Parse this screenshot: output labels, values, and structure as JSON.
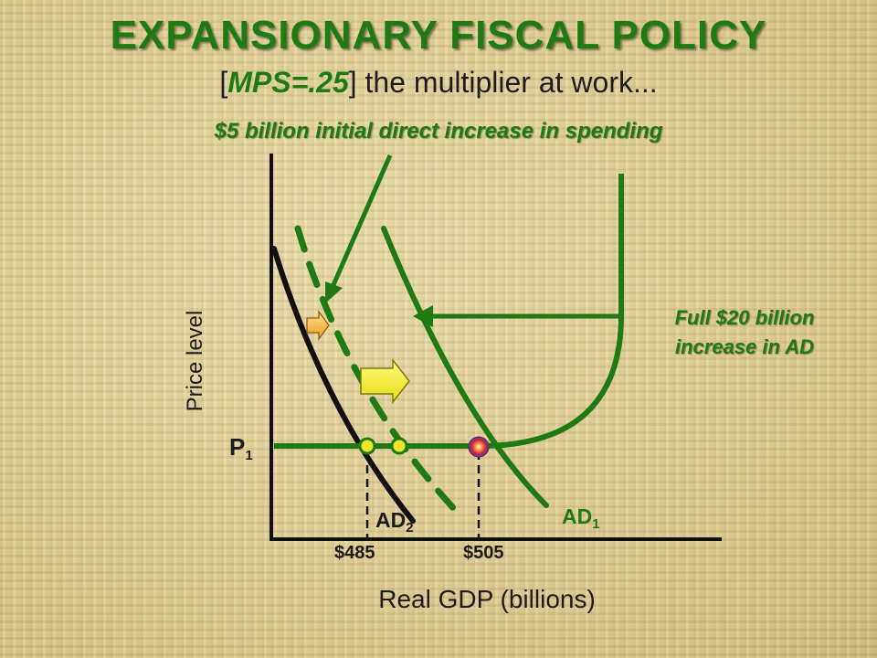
{
  "title": "EXPANSIONARY FISCAL POLICY",
  "subtitle": {
    "open_bracket": "[",
    "mps": "MPS=.25",
    "rest": "] the multiplier at work..."
  },
  "annotations": {
    "initial_increase": "$5 billion initial direct increase in spending",
    "full_increase_line1": "Full $20 billion",
    "full_increase_line2": "increase in AD"
  },
  "axes": {
    "y_label": "Price level",
    "x_label": "Real GDP (billions)"
  },
  "price_level": {
    "label": "P",
    "sub": "1"
  },
  "curves": {
    "ad1": {
      "label": "AD",
      "sub": "1"
    },
    "ad2": {
      "label": "AD",
      "sub": "2"
    }
  },
  "ticks": {
    "low": "$485",
    "high": "$505"
  },
  "colors": {
    "green": "#1f7a12",
    "black": "#111111",
    "arrow_yellow": "#f3ea2a",
    "arrow_orange": "#f2b93b"
  }
}
